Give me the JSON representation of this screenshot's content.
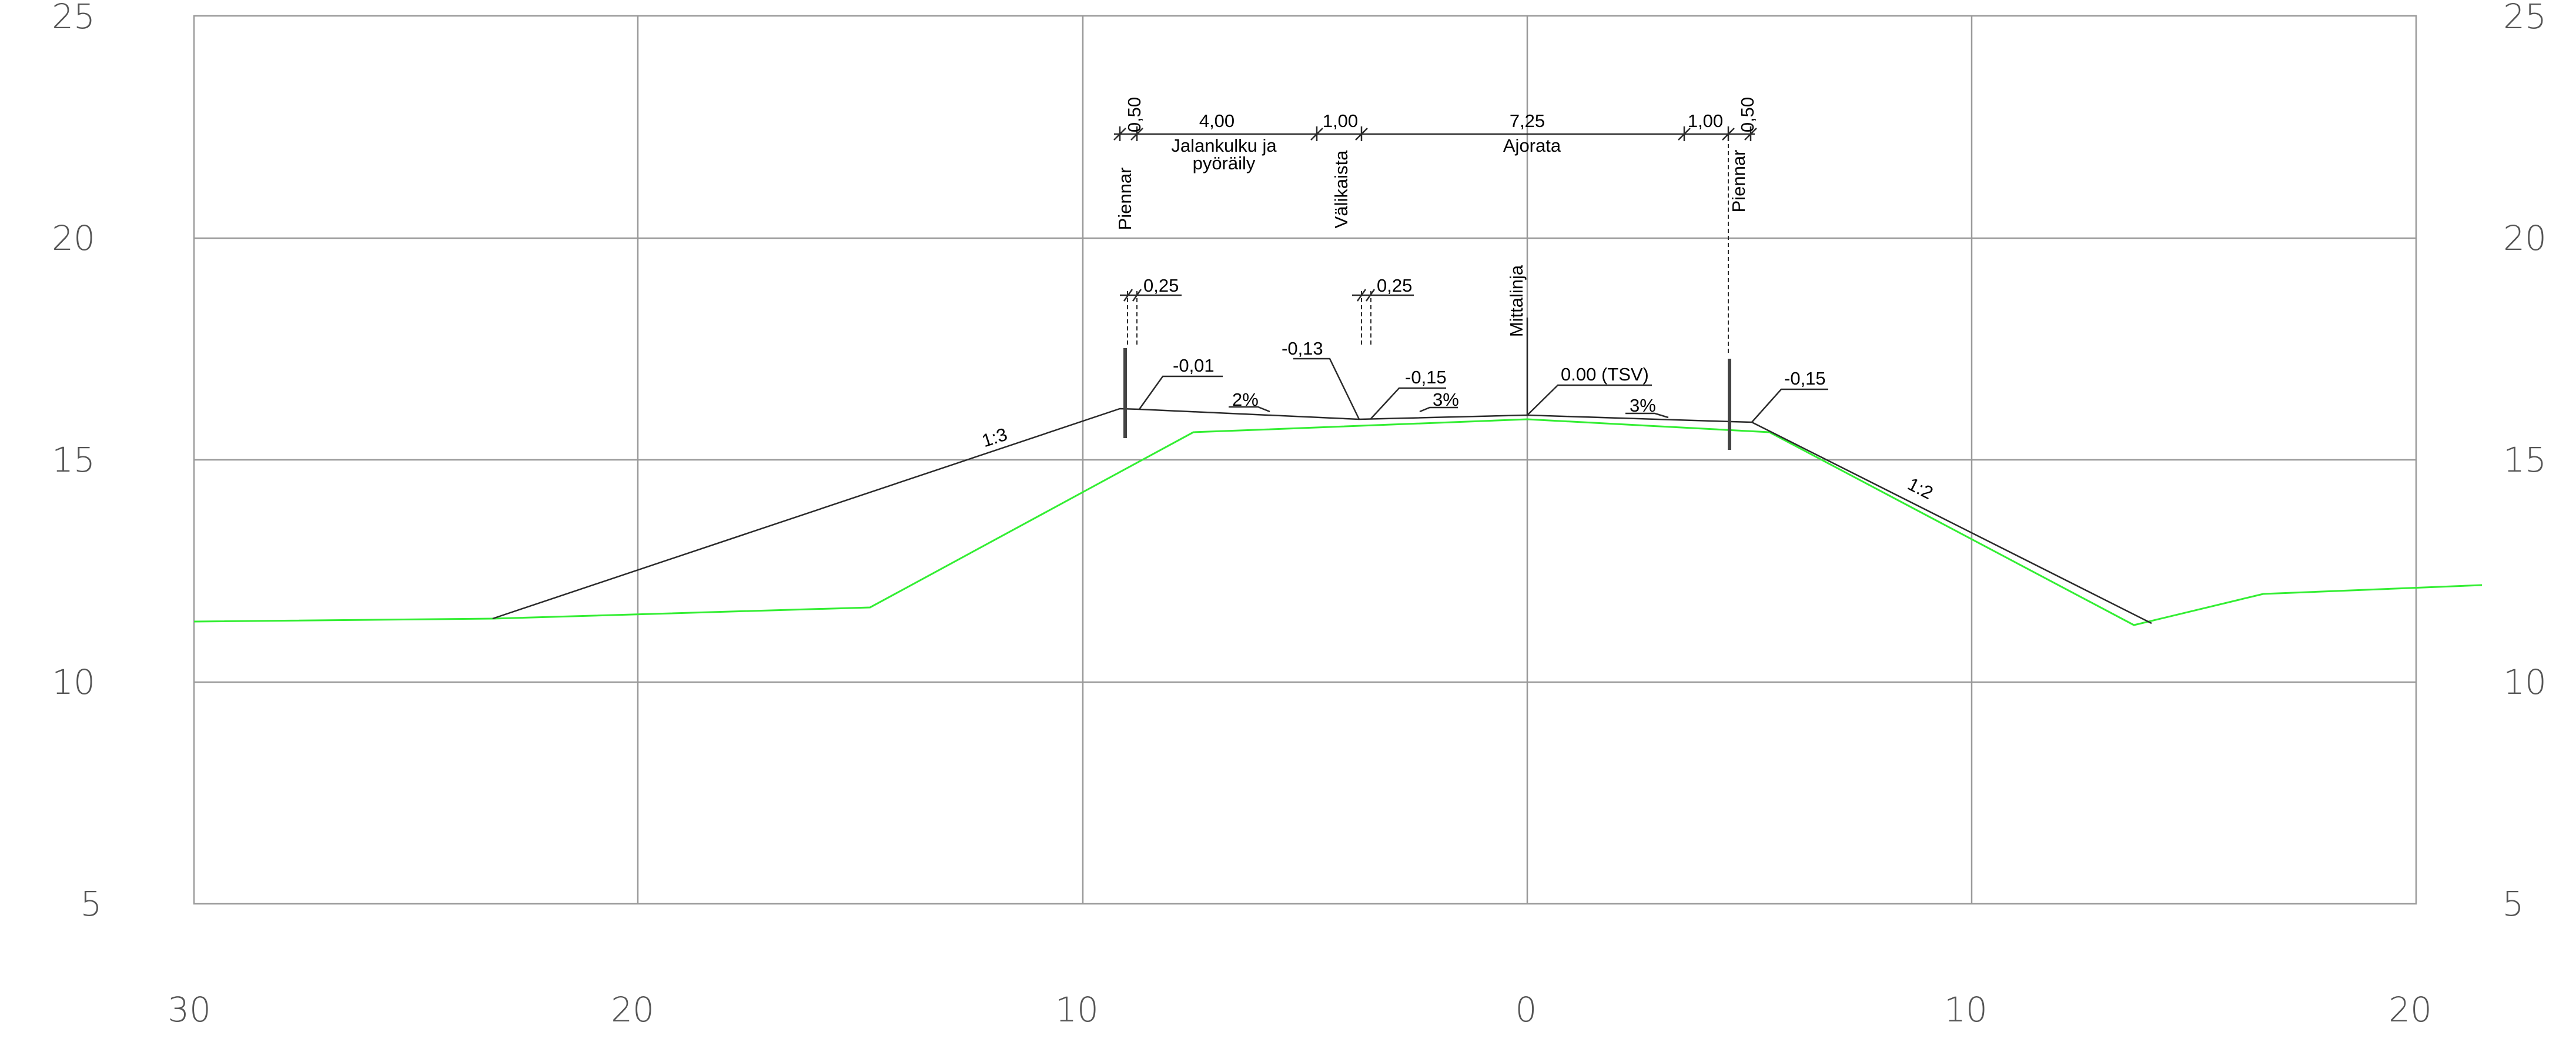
{
  "axes": {
    "x_ticks": [
      "30",
      "20",
      "10",
      "0",
      "10",
      "20"
    ],
    "y_ticks": [
      "25",
      "20",
      "15",
      "10",
      "5"
    ]
  },
  "dimensions": {
    "d1": "0,50",
    "d2": "4,00",
    "d3": "1,00",
    "d4": "7,25",
    "d5": "1,00",
    "d6": "0,50"
  },
  "section_labels": {
    "jalankulku_line1": "Jalankulku ja",
    "jalankulku_line2": "pyöräily",
    "ajorata": "Ajorata",
    "piennar_left": "Piennar",
    "valikaista": "Välikaista",
    "piennar_right": "Piennar",
    "mittalinja": "Mittalinja"
  },
  "curb_widths": {
    "left": "0,25",
    "mid": "0,25"
  },
  "elevation_callouts": {
    "e1": "-0,01",
    "e2": "-0,13",
    "e3": "-0,15",
    "e4": "0.00 (TSV)",
    "e5": "-0,15"
  },
  "slopes": {
    "s1": "2%",
    "s2": "3%",
    "s3": "3%",
    "left_embankment": "1:3",
    "right_embankment": "1:2"
  },
  "colors": {
    "grid": "#9a9a9a",
    "design_line": "#2a2a2a",
    "ground_line": "#33ee33",
    "axis_text": "#555555"
  }
}
